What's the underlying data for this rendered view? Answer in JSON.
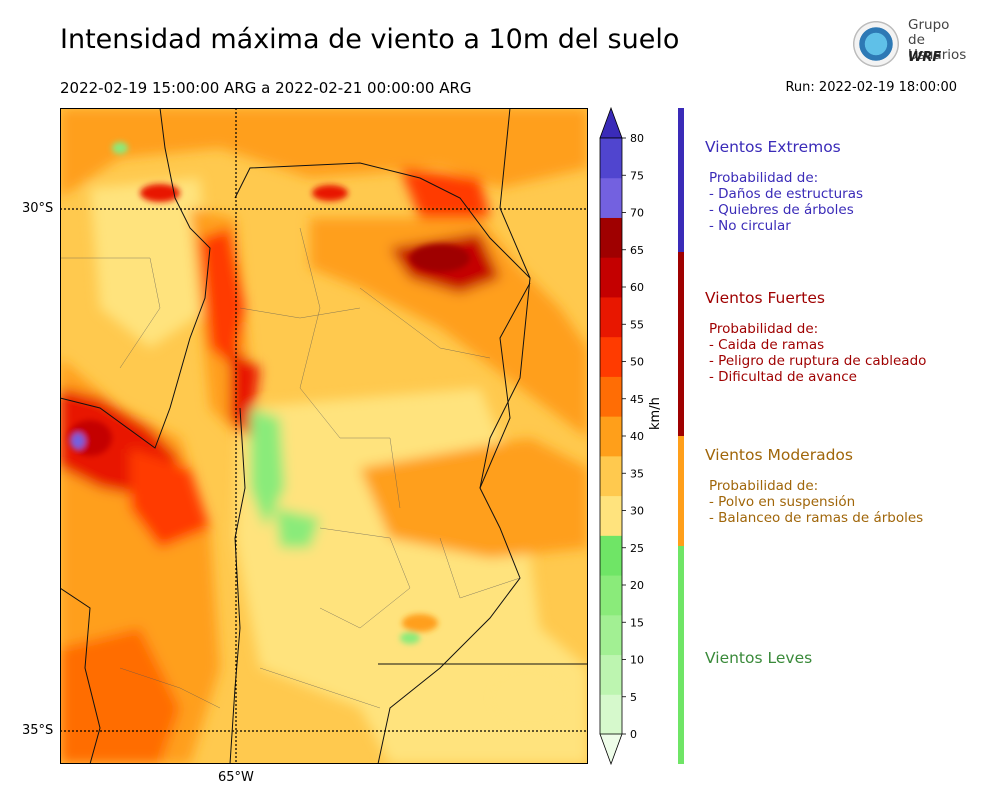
{
  "title": "Intensidad máxima de viento a 10m del suelo",
  "period": "2022-02-19 15:00:00 ARG  a  2022-02-21 00:00:00 ARG",
  "run": "Run: 2022-02-19 18:00:00",
  "logo": {
    "name_line1": "Grupo de",
    "name_line2": "Usuarios",
    "brand": "WRF"
  },
  "map": {
    "lat_labels": [
      "30°S",
      "35°S"
    ],
    "lon_labels": [
      "65°W"
    ],
    "lat_range": [
      -35.3,
      -29.0
    ],
    "lon_range": [
      -66.7,
      -61.7
    ]
  },
  "colorbar": {
    "unit": "km/h",
    "ticks": [
      "0",
      "5",
      "10",
      "15",
      "20",
      "25",
      "30",
      "35",
      "40",
      "45",
      "50",
      "55",
      "60",
      "65",
      "70",
      "75",
      "80"
    ],
    "colors": [
      "#eefde9",
      "#d6f9cc",
      "#bdf5b0",
      "#a2f093",
      "#8aeb7a",
      "#6fe566",
      "#ffe37d",
      "#ffc94e",
      "#ff9f1a",
      "#ff6d05",
      "#ff3b00",
      "#e81700",
      "#c40000",
      "#9f0000",
      "#7361e0",
      "#5045cf",
      "#3a2bb8"
    ]
  },
  "categories": [
    {
      "name": "Vientos Extremos",
      "color": "#3a2bb8",
      "lines": [
        "Probabilidad de:",
        "- Daños de estructuras",
        "- Quiebres de árboles",
        "- No circular"
      ]
    },
    {
      "name": "Vientos Fuertes",
      "color": "#9f0000",
      "lines": [
        "Probabilidad de:",
        "- Caida de ramas",
        "- Peligro de ruptura de cableado",
        "- Dificultad de avance"
      ]
    },
    {
      "name": "Vientos Moderados",
      "color": "#a0660a",
      "lines": [
        "Probabilidad de:",
        "- Polvo en suspensión",
        "- Balanceo de ramas de árboles"
      ]
    },
    {
      "name": "Vientos Leves",
      "color": "#3a8a3a",
      "lines": []
    }
  ],
  "category_bar_colors": [
    "#3a2bb8",
    "#9f0000",
    "#ff9f1a",
    "#6fe566"
  ]
}
